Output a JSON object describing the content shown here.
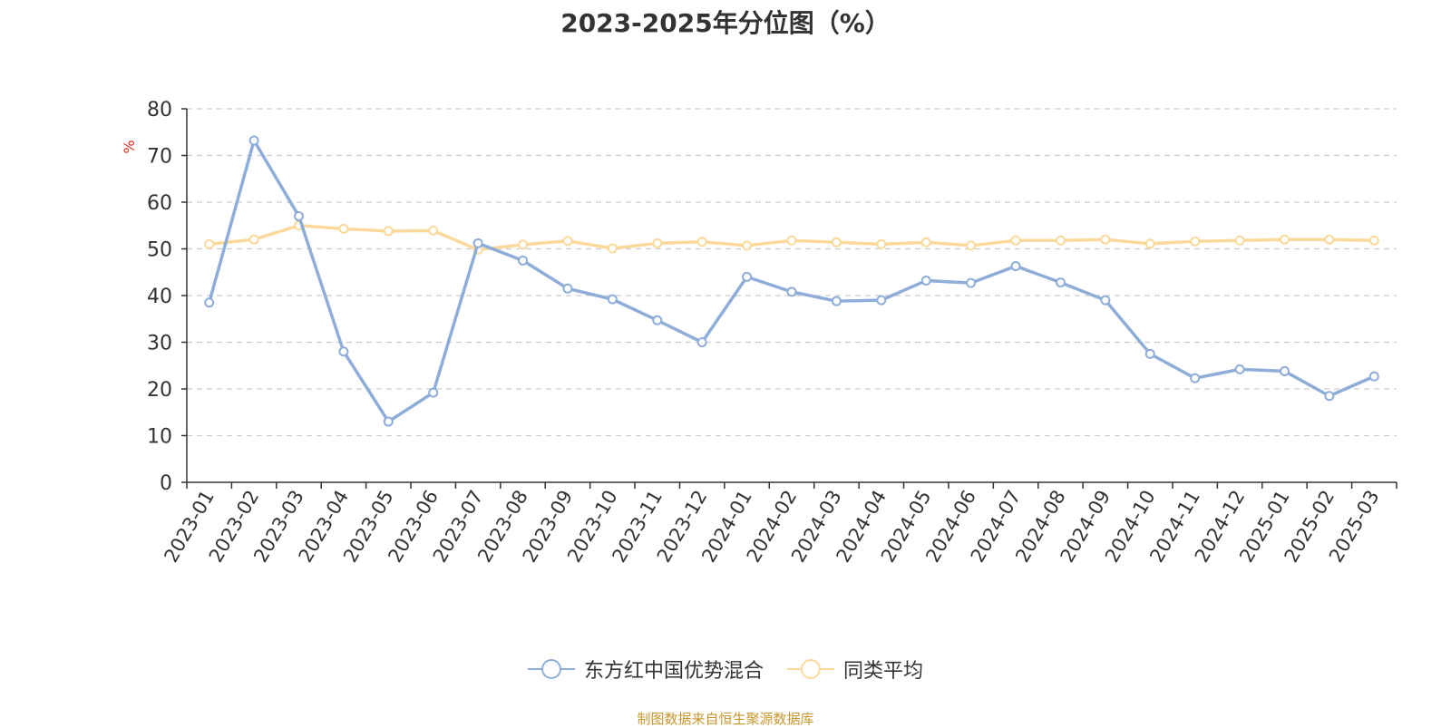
{
  "chart_data": {
    "type": "line",
    "title": "2023-2025年分位图（%）",
    "ylabel": "%",
    "ylim": [
      0,
      80
    ],
    "yticks": [
      0,
      10,
      20,
      30,
      40,
      50,
      60,
      70,
      80
    ],
    "grid": true,
    "legend_position": "bottom-center",
    "categories": [
      "2023-01",
      "2023-02",
      "2023-03",
      "2023-04",
      "2023-05",
      "2023-06",
      "2023-07",
      "2023-08",
      "2023-09",
      "2023-10",
      "2023-11",
      "2023-12",
      "2024-01",
      "2024-02",
      "2024-03",
      "2024-04",
      "2024-05",
      "2024-06",
      "2024-07",
      "2024-08",
      "2024-09",
      "2024-10",
      "2024-11",
      "2024-12",
      "2025-01",
      "2025-02",
      "2025-03"
    ],
    "series": [
      {
        "name": "东方红中国优势混合",
        "color": "#8eadd9",
        "values": [
          38.5,
          73.2,
          57.0,
          28.0,
          13.0,
          19.2,
          51.2,
          47.5,
          41.5,
          39.2,
          34.7,
          30.0,
          44.0,
          40.8,
          38.8,
          39.0,
          43.2,
          42.7,
          46.3,
          42.8,
          39.0,
          27.5,
          22.3,
          24.2,
          23.8,
          18.5,
          22.7
        ]
      },
      {
        "name": "同类平均",
        "color": "#fbd99b",
        "values": [
          51.0,
          52.0,
          55.0,
          54.3,
          53.8,
          53.9,
          49.8,
          50.9,
          51.7,
          50.1,
          51.2,
          51.5,
          50.7,
          51.8,
          51.4,
          51.0,
          51.4,
          50.7,
          51.8,
          51.8,
          52.0,
          51.1,
          51.6,
          51.8,
          52.0,
          52.0,
          51.8
        ]
      }
    ]
  },
  "source_note": "制图数据来自恒生聚源数据库"
}
